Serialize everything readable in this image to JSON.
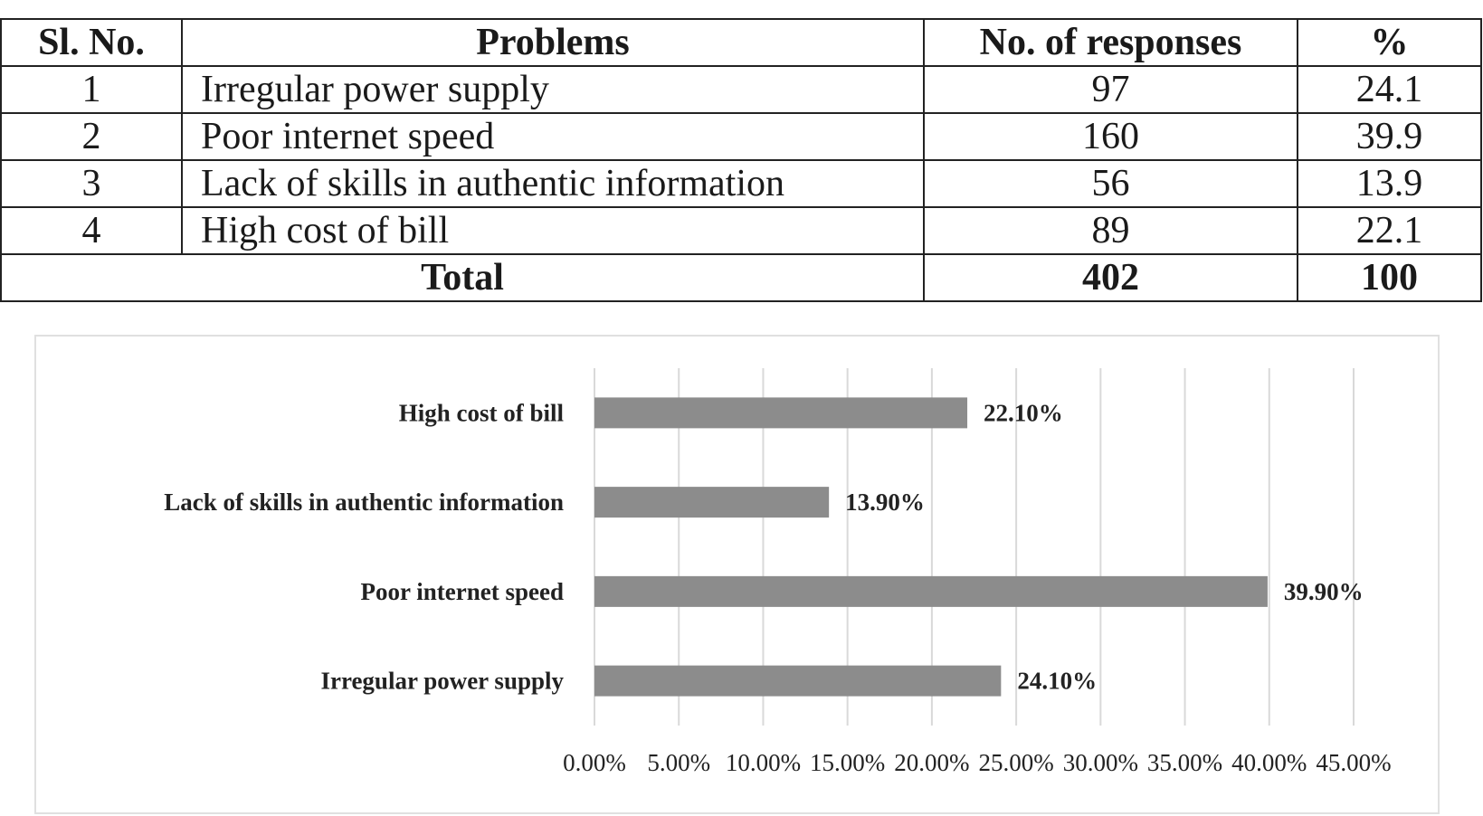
{
  "table": {
    "headers": [
      "Sl. No.",
      "Problems",
      "No. of responses",
      "%"
    ],
    "rows": [
      {
        "sl": "1",
        "problem": "Irregular power supply",
        "responses": "97",
        "pct": "24.1"
      },
      {
        "sl": "2",
        "problem": "Poor internet speed",
        "responses": "160",
        "pct": "39.9"
      },
      {
        "sl": "3",
        "problem": "Lack of skills in authentic information",
        "responses": "56",
        "pct": "13.9"
      },
      {
        "sl": "4",
        "problem": "High cost of bill",
        "responses": "89",
        "pct": "22.1"
      }
    ],
    "total": {
      "label": "Total",
      "responses": "402",
      "pct": "100"
    }
  },
  "chart_data": {
    "type": "bar",
    "orientation": "horizontal",
    "categories": [
      "High cost of bill",
      "Lack of skills in authentic information",
      "Poor internet speed",
      "Irregular power supply"
    ],
    "values": [
      22.1,
      13.9,
      39.9,
      24.1
    ],
    "data_labels": [
      "22.10%",
      "13.90%",
      "39.90%",
      "24.10%"
    ],
    "xlim": [
      0,
      45
    ],
    "x_ticks": [
      0,
      5,
      10,
      15,
      20,
      25,
      30,
      35,
      40,
      45
    ],
    "x_tick_labels": [
      "0.00%",
      "5.00%",
      "10.00%",
      "15.00%",
      "20.00%",
      "25.00%",
      "30.00%",
      "35.00%",
      "40.00%",
      "45.00%"
    ],
    "grid": "vertical",
    "bar_color": "#8c8c8c",
    "grid_color": "#d9d9d9",
    "title": "",
    "xlabel": "",
    "ylabel": ""
  }
}
